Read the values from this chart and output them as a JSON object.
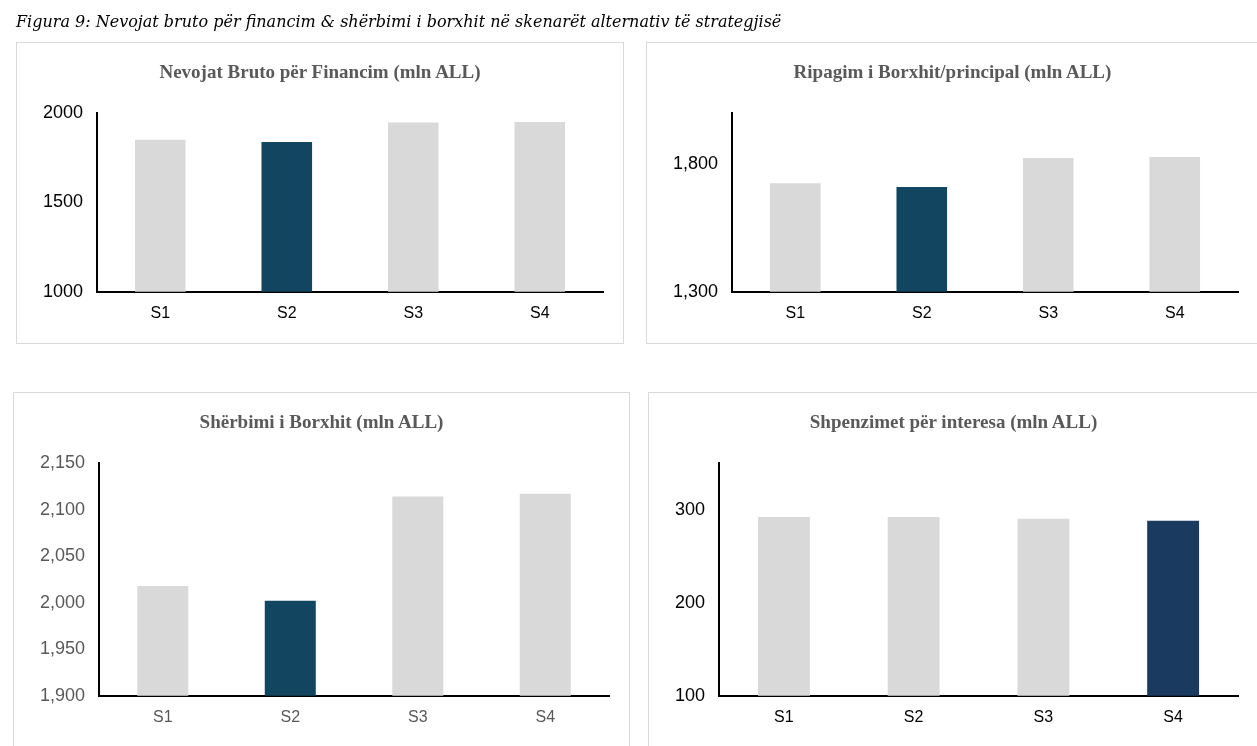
{
  "chart_data": [
    {
      "type": "bar",
      "title": "Nevojat Bruto për Financim (mln ALL)",
      "annotations": [
        "Figura 9: Nevojat bruto për financim & shërbimi i borxhit në skenarët alternativ të strategjisë"
      ],
      "categories": [
        "S1",
        "S2",
        "S3",
        "S4"
      ],
      "values": [
        1850,
        1838,
        1947,
        1949
      ],
      "colors": [
        "#d9d9d9",
        "#124560",
        "#d9d9d9",
        "#d9d9d9"
      ],
      "ylim": [
        1000,
        2000
      ],
      "yticks": [
        1000,
        1500,
        2000
      ],
      "grid": false,
      "legend": false
    },
    {
      "type": "bar",
      "title": "Ripagim i Borxhit/principal (mln ALL)",
      "categories": [
        "S1",
        "S2",
        "S3",
        "S4"
      ],
      "values": [
        1725,
        1710,
        1824,
        1828
      ],
      "colors": [
        "#d9d9d9",
        "#124560",
        "#d9d9d9",
        "#d9d9d9"
      ],
      "ylim": [
        1300,
        2000
      ],
      "yticks": [
        {
          "value": 1300,
          "label": "1,300"
        },
        {
          "value": 1800,
          "label": "1,800"
        }
      ],
      "grid": false,
      "legend": false
    },
    {
      "type": "bar",
      "title": "Shërbimi i Borxhit (mln ALL)",
      "categories": [
        "S1",
        "S2",
        "S3",
        "S4"
      ],
      "values": [
        2018,
        2002,
        2114,
        2117
      ],
      "colors": [
        "#d9d9d9",
        "#124560",
        "#d9d9d9",
        "#d9d9d9"
      ],
      "ylim": [
        1900,
        2150
      ],
      "yticks": [
        {
          "value": 1900,
          "label": "1,900"
        },
        {
          "value": 1950,
          "label": "1,950"
        },
        {
          "value": 2000,
          "label": "2,000"
        },
        {
          "value": 2050,
          "label": "2,050"
        },
        {
          "value": 2100,
          "label": "2,100"
        },
        {
          "value": 2150,
          "label": "2,150"
        }
      ],
      "grid": false,
      "legend": false
    },
    {
      "type": "bar",
      "title": "Shpenzimet për interesa (mln ALL)",
      "categories": [
        "S1",
        "S2",
        "S3",
        "S4"
      ],
      "values": [
        292,
        292,
        290,
        288
      ],
      "colors": [
        "#d9d9d9",
        "#d9d9d9",
        "#d9d9d9",
        "#1a3a5f"
      ],
      "ylim": [
        100,
        350
      ],
      "yticks": [
        100,
        200,
        300
      ],
      "grid": false,
      "legend": false
    }
  ]
}
